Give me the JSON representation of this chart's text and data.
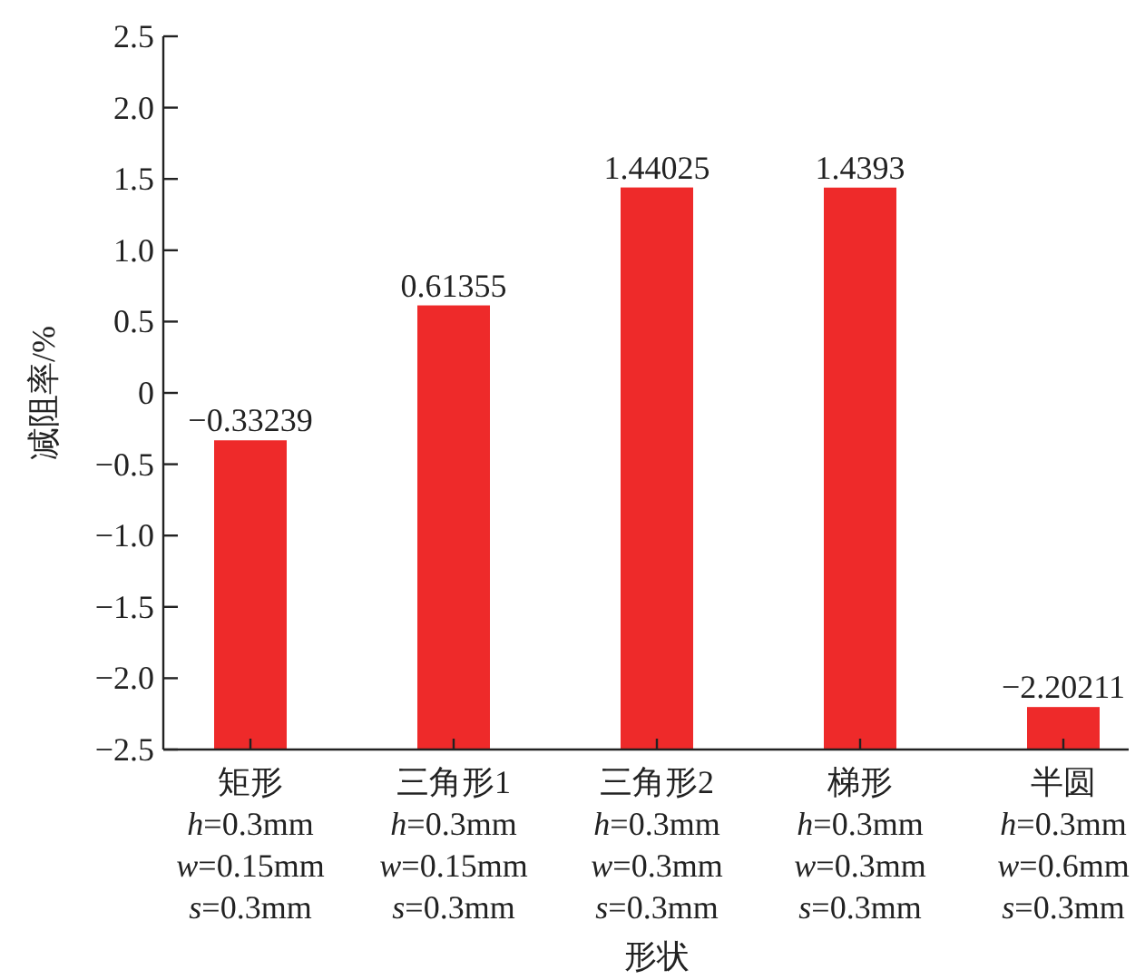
{
  "chart_data": {
    "type": "bar",
    "ylabel": "减阻率/%",
    "xlabel": "形状",
    "categories": [
      "矩形\nh=0.3mm\nw=0.15mm\ns=0.3mm",
      "三角形1\nh=0.3mm\nw=0.15mm\ns=0.3mm",
      "三角形2\nh=0.3mm\nw=0.3mm\ns=0.3mm",
      "梯形\nh=0.3mm\nw=0.3mm\ns=0.3mm",
      "半圆\nh=0.3mm\nw=0.6mm\ns=0.3mm"
    ],
    "base": [
      -2.5,
      -2.5,
      -2.5,
      -2.5,
      -2.5
    ],
    "values": [
      2.16761,
      3.11355,
      3.94025,
      3.9393,
      0.29789
    ],
    "value_labels": [
      "−0.33239",
      "0.61355",
      "1.44025",
      "1.4393",
      "−2.20211"
    ],
    "color": "#ee2a2a",
    "grid": false,
    "ylim": [
      -2.5,
      2.5
    ],
    "yticks": [
      2.5,
      {
        "value": 2,
        "label": "2.0"
      },
      1.5,
      {
        "value": 1,
        "label": "1.0"
      },
      0.5,
      0,
      {
        "value": -0.5,
        "label": "−0.5"
      },
      {
        "value": -1,
        "label": "−1.0"
      },
      {
        "value": -1.5,
        "label": "−1.5"
      },
      {
        "value": -2,
        "label": "−2.0"
      },
      {
        "value": -2.5,
        "label": "−2.5"
      }
    ]
  }
}
